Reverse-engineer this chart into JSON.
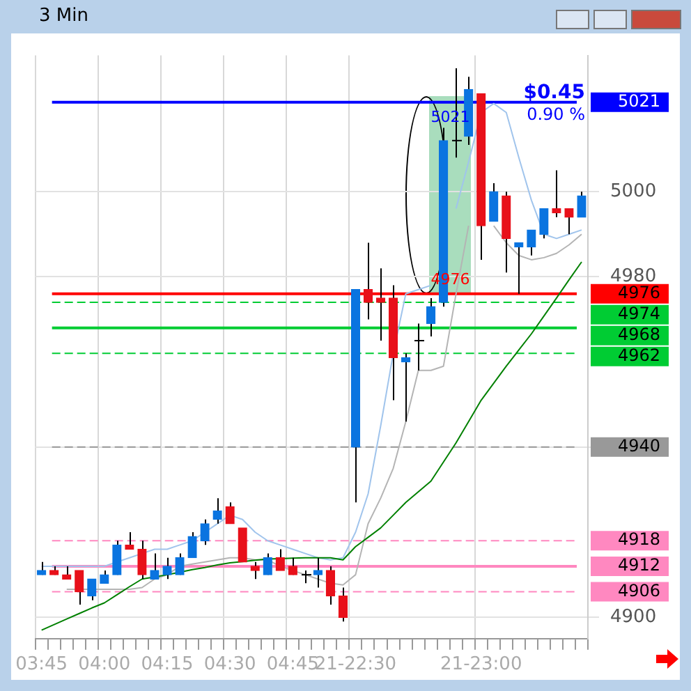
{
  "chart_data": {
    "type": "candlestick",
    "title": "3 Min",
    "categories": [
      "03:45",
      null,
      null,
      null,
      null,
      "04:00",
      null,
      null,
      null,
      null,
      "04:15",
      null,
      null,
      null,
      null,
      "04:30",
      null,
      null,
      null,
      null,
      "04:45",
      null,
      null,
      null,
      null,
      "21-22:30",
      null,
      null,
      null,
      null,
      null,
      null,
      null,
      null,
      null,
      "21-23:00",
      null,
      null,
      null,
      null,
      null,
      null,
      null,
      null
    ],
    "ohlc": [
      [
        4910,
        4913,
        4910,
        4911
      ],
      [
        4911,
        4912,
        4910,
        4910
      ],
      [
        4910,
        4912,
        4909,
        4909
      ],
      [
        4911,
        4911,
        4903,
        4906
      ],
      [
        4905,
        4909,
        4904,
        4909
      ],
      [
        4908,
        4911,
        4908,
        4910
      ],
      [
        4910,
        4918,
        4910,
        4917
      ],
      [
        4917,
        4920,
        4916,
        4916
      ],
      [
        4916,
        4918,
        4909,
        4910
      ],
      [
        4909,
        4915,
        4909,
        4911
      ],
      [
        4910,
        4914,
        4909,
        4912
      ],
      [
        4910,
        4915,
        4910,
        4914
      ],
      [
        4914,
        4920,
        4914,
        4919
      ],
      [
        4918,
        4923,
        4917,
        4922
      ],
      [
        4923,
        4928,
        4922,
        4925
      ],
      [
        4926,
        4927,
        4922,
        4922
      ],
      [
        4921,
        4921,
        4913,
        4913
      ],
      [
        4912,
        4913,
        4909,
        4911
      ],
      [
        4910,
        4915,
        4910,
        4914
      ],
      [
        4914,
        4916,
        4911,
        4911
      ],
      [
        4912,
        4914,
        4910,
        4910
      ],
      [
        4910,
        4911,
        4908,
        4910
      ],
      [
        4910,
        4914,
        4907,
        4911
      ],
      [
        4911,
        4912,
        4903,
        4905
      ],
      [
        4905,
        4907,
        4899,
        4900
      ],
      [
        4940,
        4977,
        4927,
        4977
      ],
      [
        4977,
        4988,
        4970,
        4974
      ],
      [
        4975,
        4982,
        4965,
        4974
      ],
      [
        4975,
        4978,
        4951,
        4961
      ],
      [
        4960,
        4962,
        4946,
        4961
      ],
      [
        4965,
        4969,
        4958,
        4965
      ],
      [
        4969,
        4975,
        4966,
        4973
      ],
      [
        4974,
        5015,
        4973,
        5012
      ],
      [
        5012,
        5029,
        5008,
        5012
      ],
      [
        5013,
        5027,
        5011,
        5024
      ],
      [
        5023,
        5023,
        4984,
        4992
      ],
      [
        4993,
        5002,
        4993,
        5000
      ],
      [
        4999,
        5000,
        4981,
        4989
      ],
      [
        4987,
        4988,
        4976,
        4988
      ],
      [
        4987,
        4991,
        4985,
        4991
      ],
      [
        4990,
        4996,
        4989,
        4996
      ],
      [
        4996,
        5005,
        4994,
        4995
      ],
      [
        4996,
        4996,
        4990,
        4994
      ],
      [
        4994,
        5000,
        4994,
        4999
      ]
    ],
    "colors": [
      "#0a74e0",
      "#e8101a",
      "#e8101a",
      "#e8101a",
      "#0a74e0",
      "#0a74e0",
      "#0a74e0",
      "#e8101a",
      "#e8101a",
      "#0a74e0",
      "#0a74e0",
      "#0a74e0",
      "#0a74e0",
      "#0a74e0",
      "#0a74e0",
      "#e8101a",
      "#e8101a",
      "#e8101a",
      "#0a74e0",
      "#e8101a",
      "#e8101a",
      "#000000",
      "#0a74e0",
      "#e8101a",
      "#e8101a",
      "#0a74e0",
      "#e8101a",
      "#e8101a",
      "#e8101a",
      "#0a74e0",
      "#000000",
      "#0a74e0",
      "#0a74e0",
      "#000000",
      "#0a74e0",
      "#e8101a",
      "#0a74e0",
      "#e8101a",
      "#0a74e0",
      "#0a74e0",
      "#0a74e0",
      "#e8101a",
      "#e8101a",
      "#0a74e0"
    ],
    "series": [
      {
        "type": "line",
        "color": "#008000",
        "values": [
          4897,
          4898.3,
          4899.6,
          4900.9,
          4902.2,
          4903.4,
          4905.3,
          4907.2,
          4909,
          4909.5,
          4910,
          4910.6,
          4911.2,
          4911.7,
          4912.3,
          4912.8,
          4913.1,
          4913.4,
          4913.7,
          4913.8,
          4913.9,
          4914,
          4914,
          4914,
          4913.5,
          4916.6,
          4918.8,
          4921,
          4924,
          4927,
          4929.5,
          4932,
          4936.5,
          4941,
          4946,
          4951,
          4955,
          4959,
          4962.8,
          4966.6,
          4970.8,
          4975,
          4979.3,
          4983.5
        ]
      },
      {
        "type": "line",
        "color": "#a0c4ec",
        "values": [
          4912,
          4912,
          4912,
          4912,
          4912,
          4912,
          4913,
          4914,
          4915,
          4916,
          4916,
          4917,
          4918,
          4920,
          4922,
          4924,
          4923,
          4920,
          4918,
          4917,
          4916,
          4915,
          4914,
          4913.5,
          4914,
          4920,
          4929,
          4945,
          4962,
          4976,
          4977,
          4978,
          null,
          4996,
          5007,
          5018.6,
          5020.7,
          5018.6,
          5008,
          4998,
          4990,
          4989,
          4990,
          4991
        ]
      },
      {
        "type": "line",
        "color": "#b4b4b4",
        "values": [
          null,
          null,
          4906.6,
          4906.6,
          4906.6,
          4906.6,
          4906.6,
          4906.6,
          4907,
          4909,
          4910,
          4912,
          4912.5,
          4913,
          4913.5,
          4914,
          4914,
          4913.5,
          4913.5,
          4912,
          4911,
          4910,
          4909,
          4908,
          4907.6,
          4910,
          4922,
          4928,
          4935,
          4946,
          4958,
          4958,
          4959,
          4976,
          4992,
          null,
          4992,
          4988,
          4985,
          4984,
          4984.5,
          4985.5,
          4987.5,
          4990
        ]
      }
    ],
    "ylim": [
      4895,
      5032
    ],
    "yticks": [
      4900,
      4940,
      4980,
      5000
    ],
    "grid": true,
    "legend": false,
    "ref_lines": [
      {
        "axis": "y",
        "value": 5021,
        "label": "5021",
        "color": "#0000ff",
        "line_style": "solid"
      },
      {
        "axis": "y",
        "value": 4976,
        "label": "4976",
        "color": "#ff0000",
        "line_style": "solid"
      },
      {
        "axis": "y",
        "value": 4974,
        "label": "4974",
        "color": "#00cc33",
        "line_style": "dashed"
      },
      {
        "axis": "y",
        "value": 4968,
        "label": "4968",
        "color": "#00cc33",
        "line_style": "solid"
      },
      {
        "axis": "y",
        "value": 4962,
        "label": "4962",
        "color": "#00cc33",
        "line_style": "dashed"
      },
      {
        "axis": "y",
        "value": 4940,
        "label": "4940",
        "color": "#999999",
        "line_style": "dashed"
      },
      {
        "axis": "y",
        "value": 4918,
        "label": "4918",
        "color": "#ff88c0",
        "line_style": "dashed"
      },
      {
        "axis": "y",
        "value": 4912,
        "label": "4912",
        "color": "#ff88c0",
        "line_style": "solid"
      },
      {
        "axis": "y",
        "value": 4906,
        "label": "4906",
        "color": "#ff88c0",
        "line_style": "dashed"
      }
    ],
    "annotations": [
      "$0.45",
      "0.90 %",
      {
        "text": "5021",
        "y": 5021
      },
      {
        "text": "4976",
        "y": 4976
      }
    ]
  }
}
